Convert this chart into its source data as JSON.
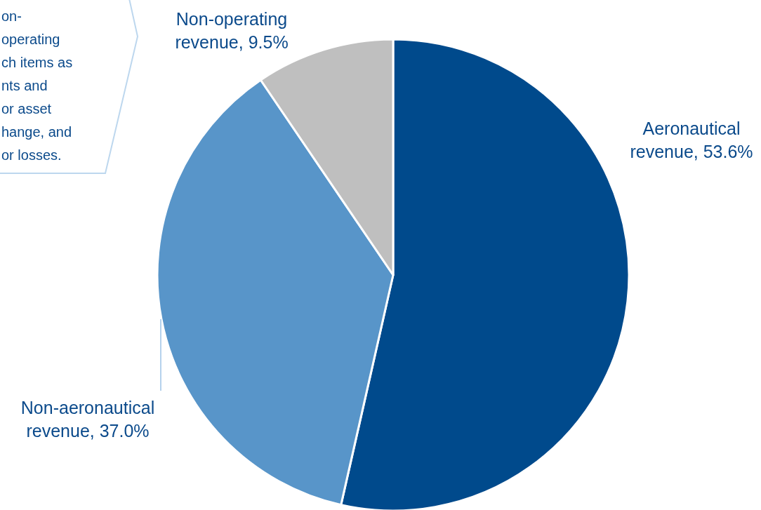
{
  "chart_data": {
    "type": "pie",
    "categories": [
      "Aeronautical revenue",
      "Non-aeronautical revenue",
      "Non-operating revenue"
    ],
    "values": [
      53.6,
      37.0,
      9.5
    ],
    "colors": [
      "#004a8c",
      "#5895c9",
      "#bfbfbf"
    ],
    "value_labels": [
      "53.6%",
      "37.0%",
      "9.5%"
    ],
    "annotations": [
      "on-\noperating\nch items as\nnts and\nor asset\nhange, and\nor losses."
    ]
  }
}
